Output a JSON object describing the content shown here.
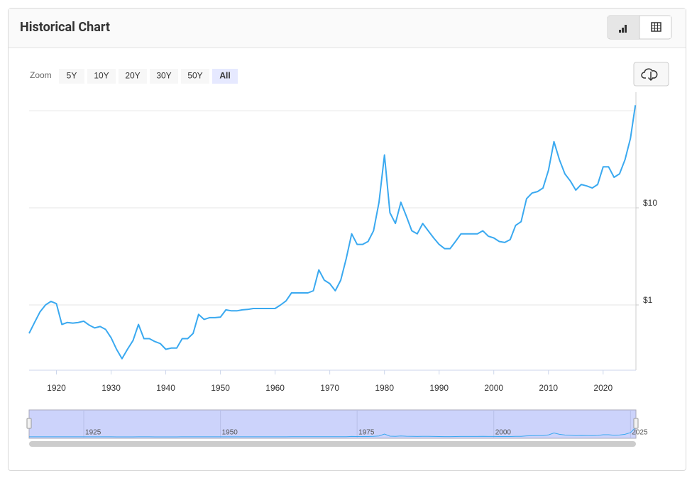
{
  "header": {
    "title": "Historical Chart"
  },
  "zoom": {
    "label": "Zoom",
    "options": [
      "5Y",
      "10Y",
      "20Y",
      "30Y",
      "50Y",
      "All"
    ],
    "selected_index": 5
  },
  "chart_data": {
    "type": "line",
    "color": "#3aa9f0",
    "log_scale": true,
    "x": [
      1915,
      1916,
      1917,
      1918,
      1919,
      1920,
      1921,
      1922,
      1923,
      1924,
      1925,
      1926,
      1927,
      1928,
      1929,
      1930,
      1931,
      1932,
      1933,
      1934,
      1935,
      1936,
      1937,
      1938,
      1939,
      1940,
      1941,
      1942,
      1943,
      1944,
      1945,
      1946,
      1947,
      1948,
      1949,
      1950,
      1951,
      1952,
      1953,
      1954,
      1955,
      1956,
      1957,
      1958,
      1959,
      1960,
      1961,
      1962,
      1963,
      1964,
      1965,
      1966,
      1967,
      1968,
      1969,
      1970,
      1971,
      1972,
      1973,
      1974,
      1975,
      1976,
      1977,
      1978,
      1979,
      1980,
      1981,
      1982,
      1983,
      1984,
      1985,
      1986,
      1987,
      1988,
      1989,
      1990,
      1991,
      1992,
      1993,
      1994,
      1995,
      1996,
      1997,
      1998,
      1999,
      2000,
      2001,
      2002,
      2003,
      2004,
      2005,
      2006,
      2007,
      2008,
      2009,
      2010,
      2011,
      2012,
      2013,
      2014,
      2015,
      2016,
      2017,
      2018,
      2019,
      2020,
      2021,
      2022,
      2023,
      2024,
      2025,
      2025.9
    ],
    "values": [
      0.51,
      0.66,
      0.85,
      1.0,
      1.09,
      1.03,
      0.63,
      0.66,
      0.65,
      0.66,
      0.68,
      0.62,
      0.58,
      0.6,
      0.56,
      0.46,
      0.35,
      0.28,
      0.35,
      0.43,
      0.63,
      0.45,
      0.45,
      0.42,
      0.4,
      0.35,
      0.36,
      0.36,
      0.45,
      0.45,
      0.51,
      0.8,
      0.71,
      0.74,
      0.74,
      0.75,
      0.89,
      0.87,
      0.87,
      0.89,
      0.9,
      0.92,
      0.92,
      0.92,
      0.92,
      0.92,
      1.0,
      1.1,
      1.33,
      1.33,
      1.33,
      1.33,
      1.4,
      2.3,
      1.8,
      1.66,
      1.4,
      1.8,
      3.0,
      5.4,
      4.2,
      4.2,
      4.5,
      5.8,
      11.4,
      35,
      8.9,
      6.9,
      11.4,
      8.2,
      5.8,
      5.4,
      6.9,
      5.8,
      4.9,
      4.2,
      3.8,
      3.8,
      4.5,
      5.4,
      5.4,
      5.4,
      5.4,
      5.8,
      5.1,
      4.9,
      4.5,
      4.4,
      4.7,
      6.6,
      7.2,
      12.4,
      14.2,
      14.7,
      16.0,
      24.4,
      48,
      31.3,
      22.4,
      18.9,
      15.2,
      17.4,
      16.8,
      16.0,
      17.4,
      26.4,
      26.4,
      20.6,
      22.4,
      31.3,
      52,
      114
    ],
    "xlim": [
      1915,
      2026
    ],
    "xticks": [
      1920,
      1930,
      1940,
      1950,
      1960,
      1970,
      1980,
      1990,
      2000,
      2010,
      2020
    ],
    "ylim": [
      0.213,
      131
    ],
    "yticks": [
      {
        "value": 1,
        "label": "$1"
      },
      {
        "value": 10,
        "label": "$10"
      }
    ],
    "ygrid": [
      1,
      10,
      100
    ],
    "navigator": {
      "xticks": [
        1925,
        1950,
        1975,
        2000,
        2025
      ]
    }
  }
}
